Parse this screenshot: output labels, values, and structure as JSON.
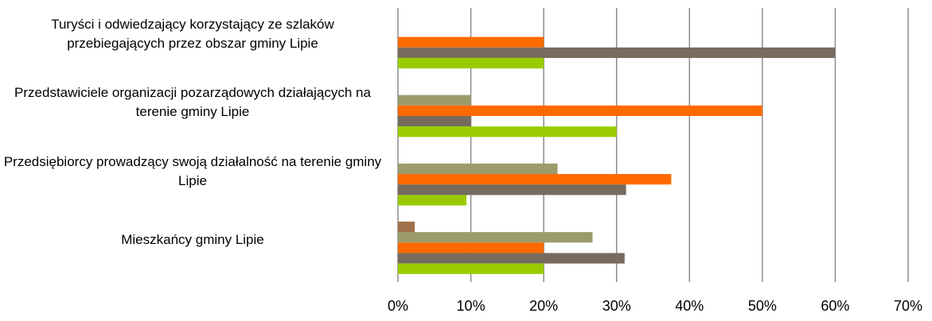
{
  "chart_data": {
    "type": "hbar",
    "categories": [
      "Turyści i odwiedzający korzystający ze szlaków przebiegających przez obszar gminy Lipie",
      "Przedstawiciele organizacji pozarządowych działających na terenie gminy Lipie",
      "Przedsiębiorcy prowadzący swoją działalność na terenie gminy Lipie",
      "Mieszkańcy gminy Lipie"
    ],
    "series": [
      {
        "color": "#a0714a",
        "values": [
          0,
          0,
          0,
          2.3
        ]
      },
      {
        "color": "#9b9b6b",
        "values": [
          0,
          10,
          21.9,
          26.7
        ]
      },
      {
        "color": "#ff6a00",
        "values": [
          20,
          50,
          37.5,
          20
        ]
      },
      {
        "color": "#766b5c",
        "values": [
          60,
          10,
          31.3,
          31.1
        ]
      },
      {
        "color": "#99cc00",
        "values": [
          20,
          30,
          9.4,
          20
        ]
      }
    ],
    "xlim": [
      0,
      70
    ],
    "xticks": [
      {
        "value": 0,
        "label": "0%"
      },
      {
        "value": 10,
        "label": "10%"
      },
      {
        "value": 20,
        "label": "20%"
      },
      {
        "value": 30,
        "label": "30%"
      },
      {
        "value": 40,
        "label": "40%"
      },
      {
        "value": 50,
        "label": "50%"
      },
      {
        "value": 60,
        "label": "60%"
      },
      {
        "value": 70,
        "label": "70%"
      }
    ],
    "grid": true
  }
}
